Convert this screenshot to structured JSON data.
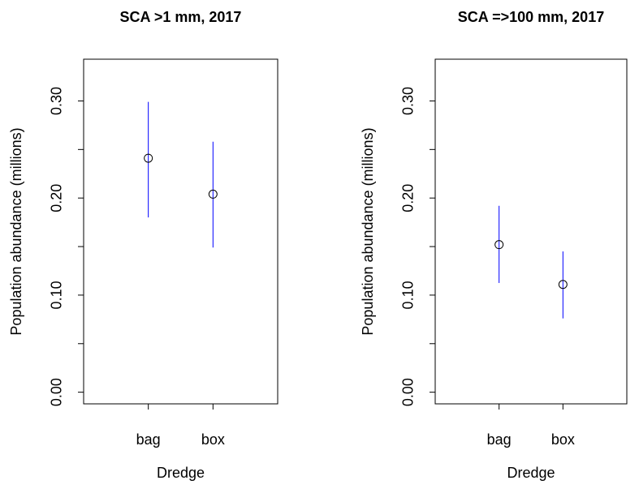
{
  "chart_data": [
    {
      "type": "errorbar",
      "title": "SCA >1 mm, 2017",
      "x_label": "Dredge",
      "y_label": "Population abundance (millions)",
      "categories": [
        "bag",
        "box"
      ],
      "values": [
        0.241,
        0.204
      ],
      "lower": [
        0.18,
        0.149
      ],
      "upper": [
        0.299,
        0.258
      ],
      "point_color": "#000000",
      "error_color": "#0000ff",
      "ylim": [
        -0.012,
        0.343
      ],
      "yticks": [
        {
          "value": 0,
          "label": "0.00"
        },
        {
          "value": 0.05,
          "label": null
        },
        {
          "value": 0.1,
          "label": "0.10"
        },
        {
          "value": 0.15,
          "label": null
        },
        {
          "value": 0.2,
          "label": "0.20"
        },
        {
          "value": 0.25,
          "label": null
        },
        {
          "value": 0.3,
          "label": "0.30"
        }
      ]
    },
    {
      "type": "errorbar",
      "title": "SCA =>100 mm, 2017",
      "x_label": "Dredge",
      "y_label": "Population abundance (millions)",
      "categories": [
        "bag",
        "box"
      ],
      "values": [
        0.152,
        0.111
      ],
      "lower": [
        0.1125,
        0.076
      ],
      "upper": [
        0.192,
        0.145
      ],
      "point_color": "#000000",
      "error_color": "#0000ff",
      "ylim": [
        -0.012,
        0.343
      ],
      "yticks": [
        {
          "value": 0,
          "label": "0.00"
        },
        {
          "value": 0.05,
          "label": null
        },
        {
          "value": 0.1,
          "label": "0.10"
        },
        {
          "value": 0.15,
          "label": null
        },
        {
          "value": 0.2,
          "label": "0.20"
        },
        {
          "value": 0.25,
          "label": null
        },
        {
          "value": 0.3,
          "label": "0.30"
        }
      ]
    }
  ]
}
